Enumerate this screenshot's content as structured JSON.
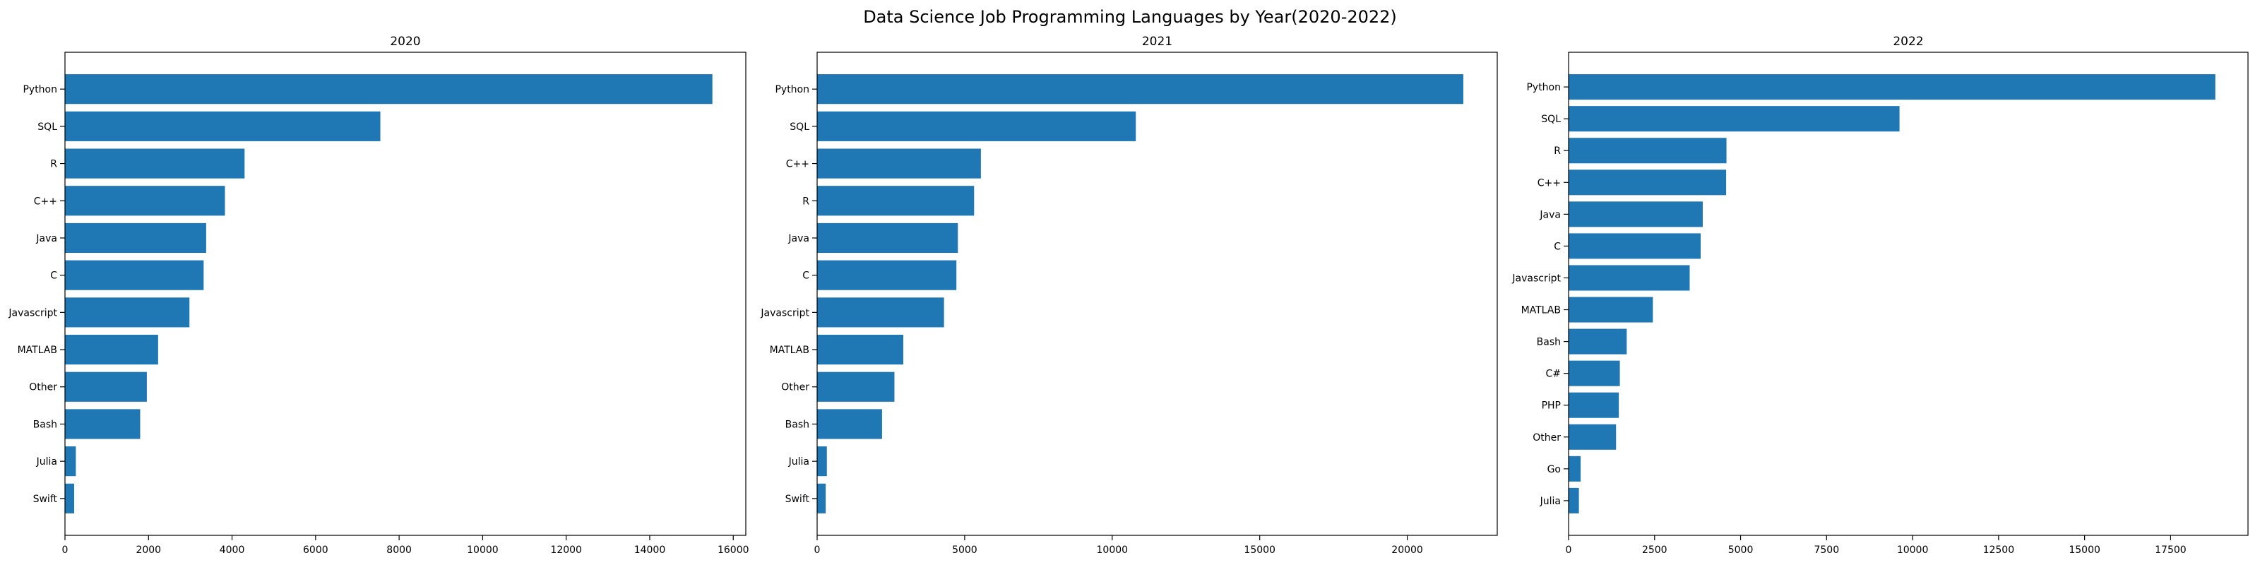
{
  "figure": {
    "title": "Data Science Job Programming Languages by Year(2020-2022)"
  },
  "colors": {
    "bar": "#1f77b4",
    "axis": "#000000",
    "background": "#ffffff"
  },
  "chart_data": [
    {
      "type": "bar",
      "orientation": "horizontal",
      "title": "2020",
      "xlabel": "",
      "ylabel": "",
      "categories": [
        "Python",
        "SQL",
        "R",
        "C++",
        "Java",
        "C",
        "Javascript",
        "MATLAB",
        "Other",
        "Bash",
        "Julia",
        "Swift"
      ],
      "values": [
        15500,
        7550,
        4300,
        3830,
        3380,
        3320,
        2980,
        2230,
        1960,
        1800,
        260,
        220
      ],
      "xlim": [
        0,
        16300
      ],
      "xticks": [
        0,
        2000,
        4000,
        6000,
        8000,
        10000,
        12000,
        14000,
        16000
      ],
      "xtick_labels": [
        "0",
        "2000",
        "4000",
        "6000",
        "8000",
        "10000",
        "12000",
        "14000",
        "16000"
      ],
      "grid": false,
      "legend": "none"
    },
    {
      "type": "bar",
      "orientation": "horizontal",
      "title": "2021",
      "xlabel": "",
      "ylabel": "",
      "categories": [
        "Python",
        "SQL",
        "C++",
        "R",
        "Java",
        "C",
        "Javascript",
        "MATLAB",
        "Other",
        "Bash",
        "Julia",
        "Swift"
      ],
      "values": [
        21900,
        10800,
        5550,
        5320,
        4770,
        4720,
        4300,
        2920,
        2620,
        2200,
        330,
        290
      ],
      "xlim": [
        0,
        23050
      ],
      "xticks": [
        0,
        5000,
        10000,
        15000,
        20000
      ],
      "xtick_labels": [
        "0",
        "5000",
        "10000",
        "15000",
        "20000"
      ],
      "grid": false,
      "legend": "none"
    },
    {
      "type": "bar",
      "orientation": "horizontal",
      "title": "2022",
      "xlabel": "",
      "ylabel": "",
      "categories": [
        "Python",
        "SQL",
        "R",
        "C++",
        "Java",
        "C",
        "Javascript",
        "MATLAB",
        "Bash",
        "C#",
        "PHP",
        "Other",
        "Go",
        "Julia"
      ],
      "values": [
        18800,
        9620,
        4590,
        4580,
        3900,
        3840,
        3520,
        2450,
        1690,
        1490,
        1460,
        1380,
        350,
        300
      ],
      "xlim": [
        0,
        19750
      ],
      "xticks": [
        0,
        2500,
        5000,
        7500,
        10000,
        12500,
        15000,
        17500
      ],
      "xtick_labels": [
        "0",
        "2500",
        "5000",
        "7500",
        "10000",
        "12500",
        "15000",
        "17500"
      ],
      "grid": false,
      "legend": "none"
    }
  ]
}
